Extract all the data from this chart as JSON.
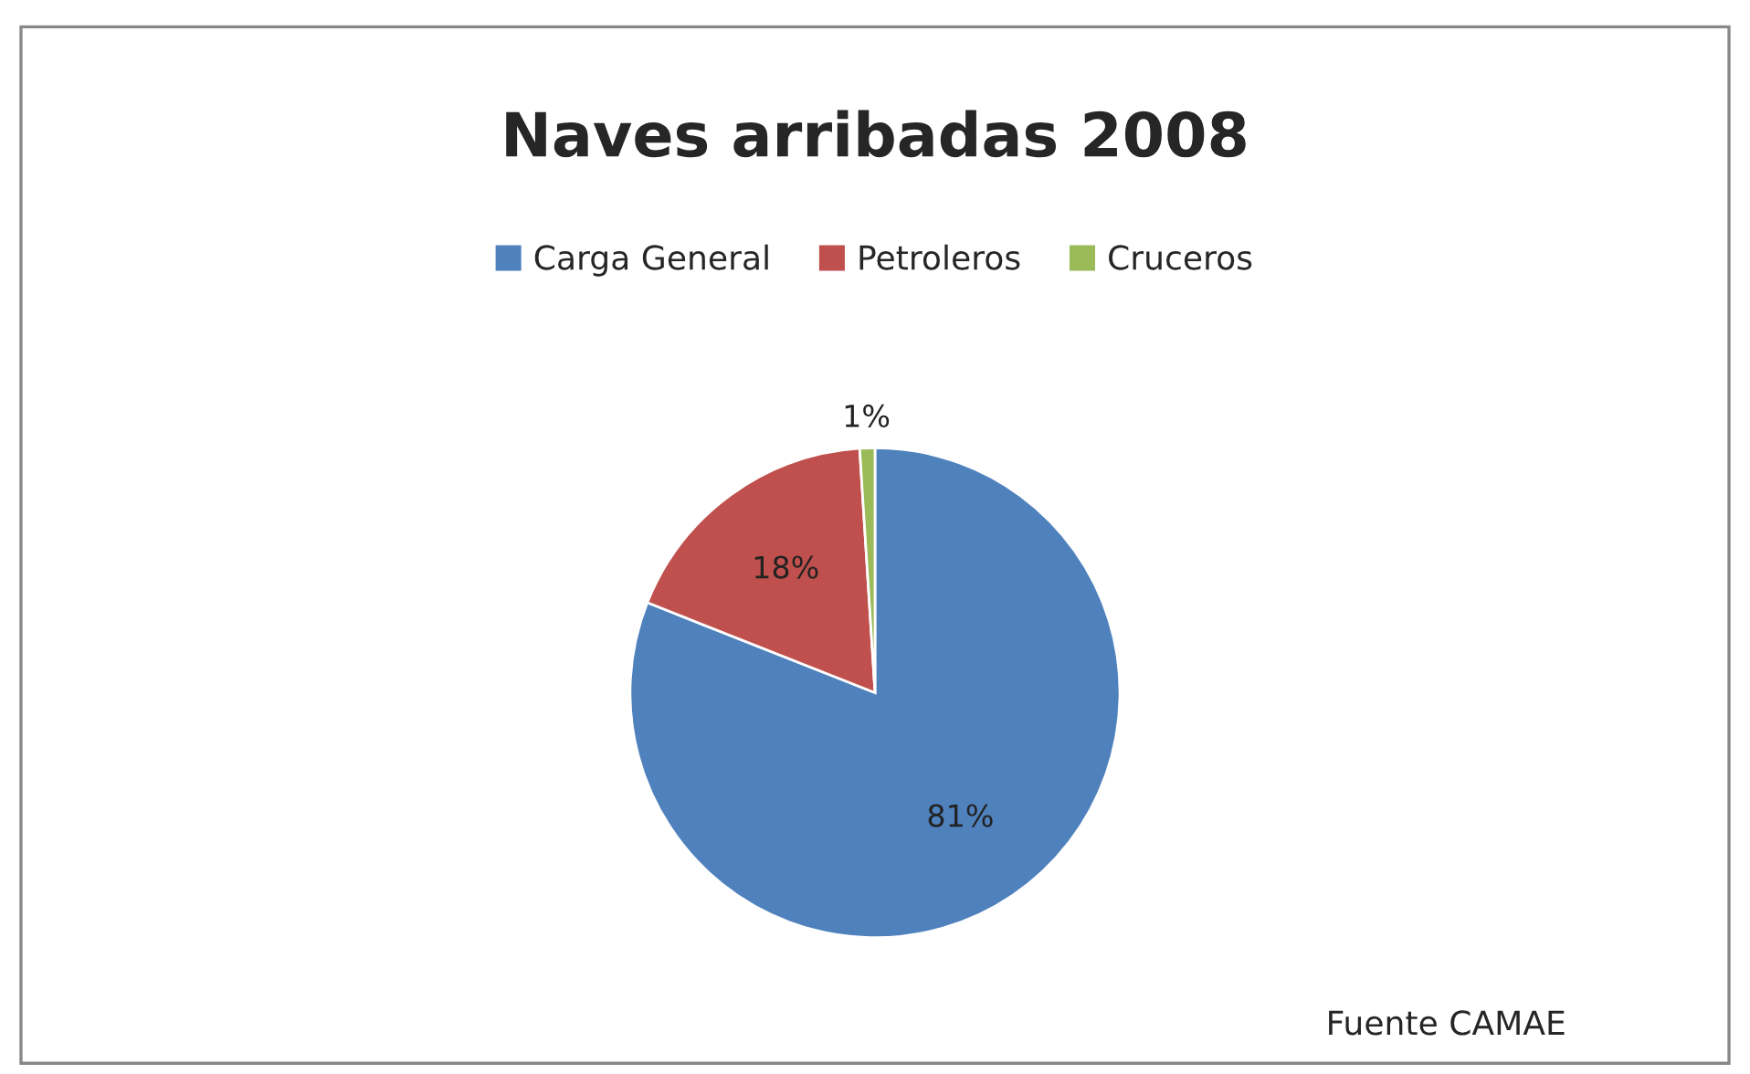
{
  "chart_data": {
    "type": "pie",
    "title": "Naves arribadas 2008",
    "categories": [
      "Carga General",
      "Petroleros",
      "Cruceros"
    ],
    "values": [
      81,
      18,
      1
    ],
    "colors": [
      "#4f81bd",
      "#c0504d",
      "#9bbb59"
    ],
    "value_labels": [
      "81%",
      "18%",
      "1%"
    ],
    "legend": "top",
    "annotations": [
      "Fuente CAMAE"
    ]
  }
}
